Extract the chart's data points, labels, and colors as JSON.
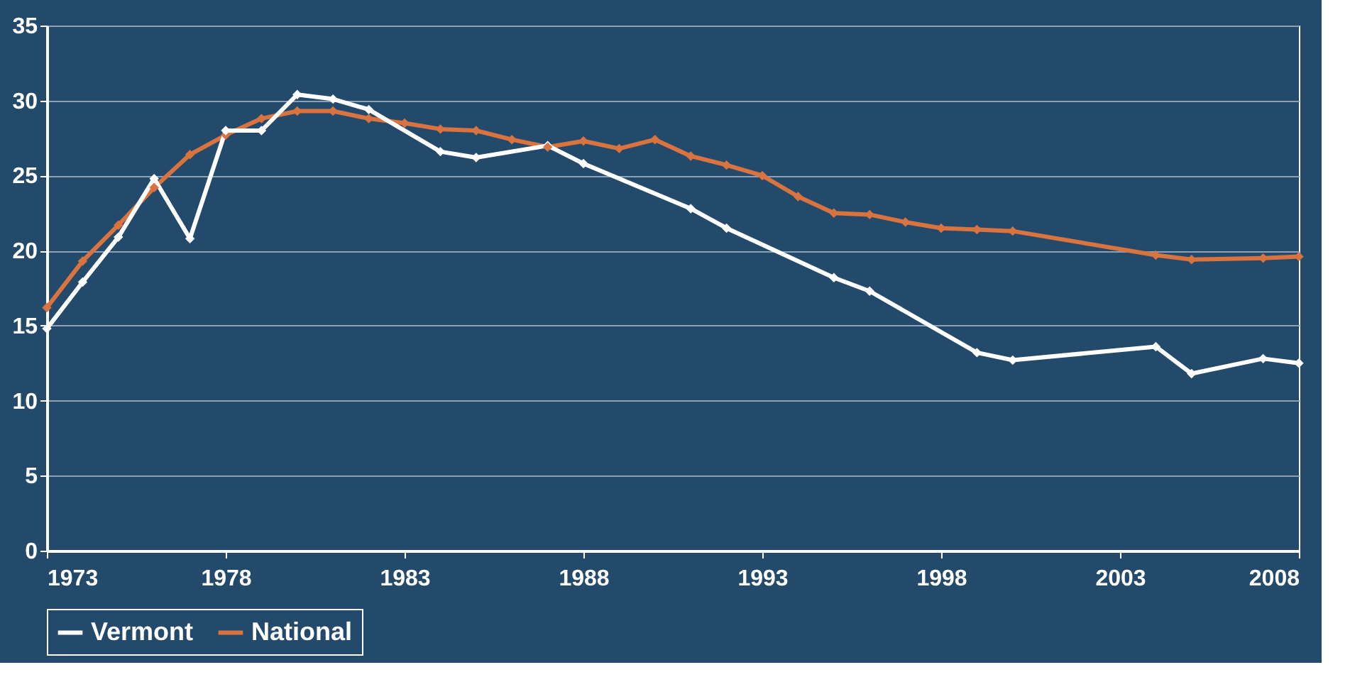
{
  "chart_data": {
    "type": "line",
    "xlim": [
      1973,
      2008
    ],
    "xticks": [
      1973,
      1978,
      1983,
      1988,
      1993,
      1998,
      2003,
      2008
    ],
    "ylim": [
      0,
      35
    ],
    "yticks": [
      0,
      5,
      10,
      15,
      20,
      25,
      30,
      35
    ],
    "grid": "y",
    "legend": "bottom",
    "marker": "diamond",
    "line_style": "solid",
    "series": [
      {
        "name": "Vermont",
        "color": "#ffffff",
        "x": [
          1973,
          1974,
          1975,
          1976,
          1977,
          1978,
          1979,
          1980,
          1981,
          1982,
          1984,
          1985,
          1987,
          1988,
          1991,
          1992,
          1995,
          1996,
          1999,
          2000,
          2004,
          2005,
          2007,
          2008
        ],
        "values": [
          14.8,
          17.9,
          20.9,
          24.8,
          20.8,
          28.0,
          28.0,
          30.4,
          30.1,
          29.4,
          26.6,
          26.2,
          27.0,
          25.8,
          22.8,
          21.5,
          18.2,
          17.3,
          13.2,
          12.7,
          13.6,
          11.8,
          12.8,
          12.5
        ]
      },
      {
        "name": "National",
        "color": "#d9733f",
        "x": [
          1973,
          1974,
          1975,
          1976,
          1977,
          1978,
          1979,
          1980,
          1981,
          1982,
          1983,
          1984,
          1985,
          1986,
          1987,
          1988,
          1989,
          1990,
          1991,
          1992,
          1993,
          1994,
          1995,
          1996,
          1997,
          1998,
          1999,
          2000,
          2004,
          2005,
          2007,
          2008
        ],
        "values": [
          16.2,
          19.3,
          21.7,
          24.2,
          26.4,
          27.7,
          28.8,
          29.3,
          29.3,
          28.8,
          28.5,
          28.1,
          28.0,
          27.4,
          26.9,
          27.3,
          26.8,
          27.4,
          26.3,
          25.7,
          25.0,
          23.6,
          22.5,
          22.4,
          21.9,
          21.5,
          21.4,
          21.3,
          19.7,
          19.4,
          19.5,
          19.6
        ]
      }
    ]
  }
}
